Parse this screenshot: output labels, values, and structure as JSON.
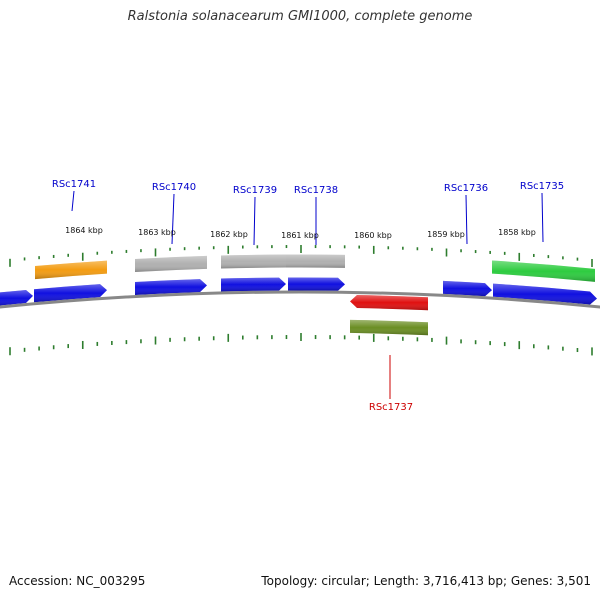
{
  "title": "Ralstonia solanacearum GMI1000, complete genome",
  "footer": {
    "accession": "Accession: NC_003295",
    "info": "Topology: circular; Length: 3,716,413 bp; Genes: 3,501"
  },
  "colors": {
    "backbone": "#888888",
    "tick": "#2e7d2e",
    "gene_label": "#0000cc",
    "gene_label_alt": "#cc0000",
    "leader_line": "#0000cc"
  },
  "kbp_labels": [
    "1864 kbp",
    "1863 kbp",
    "1862 kbp",
    "1861 kbp",
    "1860 kbp",
    "1859 kbp",
    "1858 kbp"
  ],
  "gene_labels": [
    {
      "name": "RSc1741",
      "color": "#0000cc"
    },
    {
      "name": "RSc1740",
      "color": "#0000cc"
    },
    {
      "name": "RSc1739",
      "color": "#0000cc"
    },
    {
      "name": "RSc1738",
      "color": "#0000cc"
    },
    {
      "name": "RSc1736",
      "color": "#0000cc"
    },
    {
      "name": "RSc1735",
      "color": "#0000cc"
    },
    {
      "name": "RSc1737",
      "color": "#cc0000"
    }
  ],
  "features": [
    {
      "track": "cog",
      "color": "#f39c12",
      "strand": "forward"
    },
    {
      "track": "cog",
      "color": "#b0b0b0",
      "strand": "forward"
    },
    {
      "track": "cog",
      "color": "#b0b0b0",
      "strand": "forward"
    },
    {
      "track": "cog",
      "color": "#b0b0b0",
      "strand": "forward"
    },
    {
      "track": "cog",
      "color": "#2ecc40",
      "strand": "forward"
    },
    {
      "track": "cds",
      "color": "#1010e0",
      "strand": "forward"
    },
    {
      "track": "cds",
      "color": "#1010e0",
      "strand": "forward"
    },
    {
      "track": "cds",
      "color": "#1010e0",
      "strand": "forward"
    },
    {
      "track": "cds",
      "color": "#1010e0",
      "strand": "forward"
    },
    {
      "track": "cds",
      "color": "#1010e0",
      "strand": "forward"
    },
    {
      "track": "cds",
      "color": "#1010e0",
      "strand": "forward"
    },
    {
      "track": "cds",
      "color": "#1010e0",
      "strand": "forward"
    },
    {
      "track": "cds",
      "color": "#e01010",
      "strand": "reverse"
    },
    {
      "track": "cog",
      "color": "#6b8e23",
      "strand": "reverse"
    }
  ]
}
